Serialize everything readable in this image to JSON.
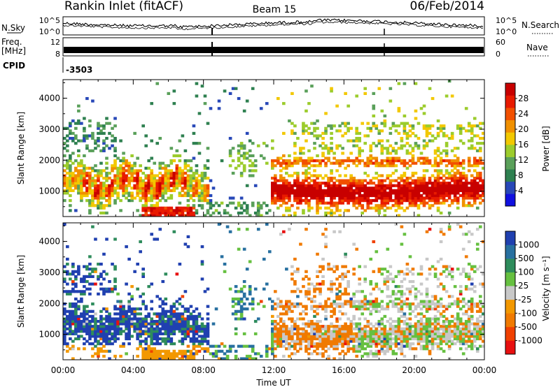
{
  "header": {
    "station": "Rankin Inlet (fitACF)",
    "beam": "Beam 15",
    "date": "06/Feb/2014"
  },
  "panels": {
    "nsky": {
      "left_label": "N.Sky",
      "right_label": "N.Search",
      "left_ticks": [
        "10^5",
        "10^0"
      ],
      "right_ticks": [
        "10^5",
        "10^0"
      ]
    },
    "freq": {
      "left_label_1": "Freq.",
      "left_label_2": "[MHz]",
      "right_label": "Nave",
      "left_ticks": [
        "12",
        "8"
      ],
      "right_ticks": [
        "60",
        "0"
      ]
    },
    "cpid": {
      "label": "CPID",
      "value": "-3503"
    }
  },
  "colors": {
    "power": [
      "#1010e0",
      "#2848b8",
      "#2e8050",
      "#5aa05a",
      "#9ccc2c",
      "#f2c800",
      "#f09000",
      "#f25000",
      "#e81a00",
      "#c80000"
    ],
    "velocity": [
      "#e81010",
      "#f04000",
      "#f07a00",
      "#f29800",
      "#c8c8c8",
      "#66c040",
      "#2e8c5c",
      "#2870a0",
      "#2040b0"
    ]
  },
  "chart_data": [
    {
      "type": "heatmap",
      "quantity": "power",
      "xlabel": "",
      "ylabel": "Slant Range [km]",
      "x_ticks": [
        "00:00",
        "04:00",
        "08:00",
        "12:00",
        "16:00",
        "20:00",
        "00:00"
      ],
      "y_ticks": [
        1000,
        2000,
        3000,
        4000
      ],
      "ylim": [
        180,
        4600
      ],
      "xlim_hours": [
        0,
        24
      ],
      "colorbar": {
        "title": "Power [dB]",
        "ticks": [
          "4",
          "8",
          "12",
          "16",
          "20",
          "24",
          "28"
        ],
        "range": [
          0,
          30
        ]
      }
    },
    {
      "type": "heatmap",
      "quantity": "velocity",
      "xlabel": "Time UT",
      "ylabel": "Slant Range [km]",
      "x_ticks": [
        "00:00",
        "04:00",
        "08:00",
        "12:00",
        "16:00",
        "20:00",
        "00:00"
      ],
      "y_ticks": [
        1000,
        2000,
        3000,
        4000
      ],
      "ylim": [
        180,
        4600
      ],
      "xlim_hours": [
        0,
        24
      ],
      "colorbar": {
        "title": "Velocity [m s⁻¹]",
        "ticks": [
          "1000",
          "500",
          "100",
          "25",
          "-25",
          "-100",
          "-500",
          "-1000"
        ]
      }
    }
  ]
}
